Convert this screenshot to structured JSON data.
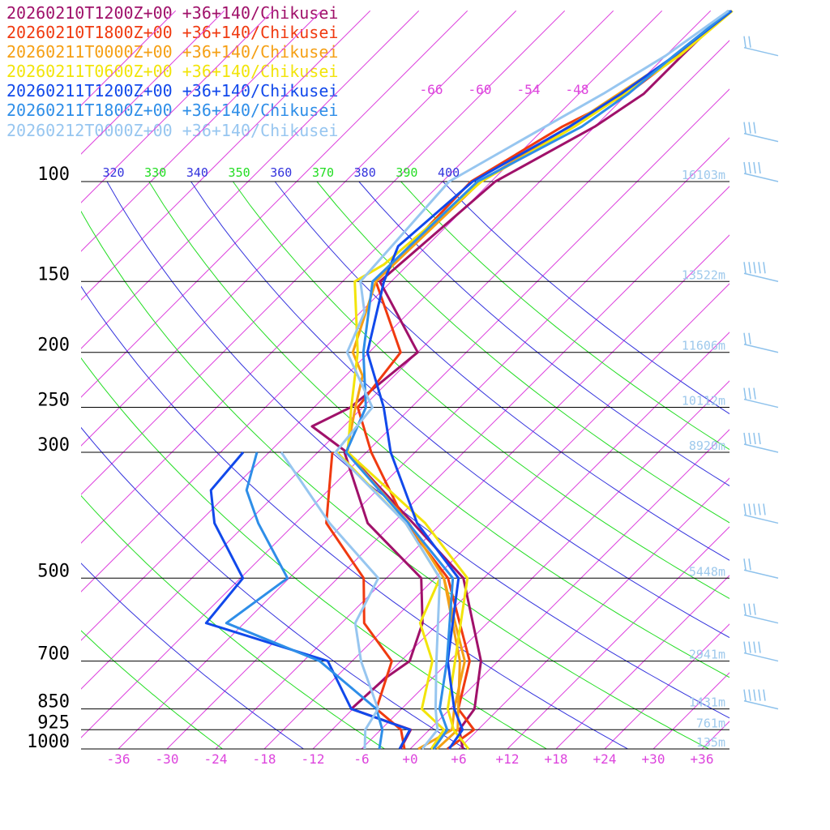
{
  "colors": {
    "isotherm": "#dd44dd",
    "theta": "#22dd22",
    "theta_e": "#3333dd",
    "isobar": "#000000",
    "height": "#9ec9ec",
    "wind": "#8ec2ec"
  },
  "chart_data": {
    "type": "line",
    "title": "",
    "xlabel": "",
    "ylabel": "",
    "x_axis": {
      "ticks": [
        -36,
        -30,
        -24,
        -18,
        -12,
        -6,
        0,
        6,
        12,
        18,
        24,
        30,
        36
      ],
      "labels": [
        "-36",
        "-30",
        "-24",
        "-18",
        "-12",
        "-6",
        "+0",
        "+6",
        "+12",
        "+18",
        "+24",
        "+30",
        "+36"
      ],
      "range": [
        -40,
        40
      ]
    },
    "y_axis": {
      "scale": "log",
      "range": [
        1000,
        100
      ],
      "ticks": [
        100,
        150,
        200,
        250,
        300,
        500,
        700,
        850,
        925,
        1000
      ],
      "labels": [
        "100",
        "150",
        "200",
        "250",
        "300",
        "500",
        "700",
        "850",
        "925",
        "1000"
      ]
    },
    "isotherm_labels": [
      -66,
      -60,
      -54,
      -48
    ],
    "isotherm_label_text": [
      "-66",
      "-60",
      "-54",
      "-48"
    ],
    "theta_labels": [
      "320",
      "330",
      "340",
      "350",
      "360",
      "370",
      "380",
      "390",
      "400"
    ],
    "theta_values": [
      320,
      330,
      340,
      350,
      360,
      370,
      380,
      390,
      400
    ],
    "theta_colors": [
      "theta_e",
      "theta",
      "theta_e",
      "theta",
      "theta_e",
      "theta",
      "theta_e",
      "theta",
      "theta_e"
    ],
    "height_labels": [
      {
        "p": 100,
        "text": "16103m"
      },
      {
        "p": 150,
        "text": "13522m"
      },
      {
        "p": 200,
        "text": "11606m"
      },
      {
        "p": 250,
        "text": "10112m"
      },
      {
        "p": 300,
        "text": "8920m"
      },
      {
        "p": 500,
        "text": "5448m"
      },
      {
        "p": 700,
        "text": "2941m"
      },
      {
        "p": 850,
        "text": "1431m"
      },
      {
        "p": 925,
        "text": "761m"
      },
      {
        "p": 1000,
        "text": "135m"
      }
    ],
    "wind_levels": [
      60,
      85,
      100,
      150,
      200,
      250,
      300,
      400,
      500,
      600,
      700,
      850
    ],
    "series": [
      {
        "name": "20260210T1200Z+00 +36+140/Chikusei",
        "color": "#a0116a",
        "temperature": [
          [
            1000,
            6.5
          ],
          [
            925,
            3.7
          ],
          [
            850,
            3.0
          ],
          [
            700,
            -2.1
          ],
          [
            500,
            -14.5
          ],
          [
            400,
            -27.5
          ],
          [
            300,
            -44.4
          ],
          [
            270,
            -51.9
          ],
          [
            250,
            -49.5
          ],
          [
            200,
            -48.0
          ],
          [
            150,
            -61.4
          ],
          [
            100,
            -59.5
          ],
          [
            80,
            -54.0
          ],
          [
            70,
            -52.0
          ],
          [
            60,
            -52.0
          ],
          [
            50,
            -51.8
          ]
        ],
        "dewpoint": [
          [
            1000,
            -1.2
          ],
          [
            925,
            -2.3
          ],
          [
            850,
            -12.2
          ],
          [
            750,
            -11.8
          ],
          [
            700,
            -10.9
          ],
          [
            600,
            -14.0
          ],
          [
            500,
            -19.7
          ],
          [
            400,
            -33.1
          ],
          [
            300,
            -44.7
          ]
        ]
      },
      {
        "name": "20260210T1800Z+00 +36+140/Chikusei",
        "color": "#f03a10",
        "temperature": [
          [
            1000,
            4.6
          ],
          [
            925,
            5.5
          ],
          [
            850,
            1.0
          ],
          [
            700,
            -3.5
          ],
          [
            500,
            -16.4
          ],
          [
            400,
            -28.4
          ],
          [
            300,
            -41.4
          ],
          [
            250,
            -48.6
          ],
          [
            200,
            -50.1
          ],
          [
            150,
            -61.9
          ],
          [
            140,
            -62.0
          ],
          [
            100,
            -62.5
          ],
          [
            80,
            -58.0
          ],
          [
            70,
            -54.0
          ],
          [
            60,
            -52.5
          ],
          [
            50,
            -51.8
          ]
        ],
        "dewpoint": [
          [
            1000,
            -0.7
          ],
          [
            925,
            -3.5
          ],
          [
            850,
            -9.1
          ],
          [
            700,
            -13.1
          ],
          [
            600,
            -21.2
          ],
          [
            500,
            -26.8
          ],
          [
            400,
            -38.2
          ],
          [
            300,
            -46.2
          ]
        ]
      },
      {
        "name": "20260211T0000Z+00 +36+140/Chikusei",
        "color": "#f5a015",
        "temperature": [
          [
            1000,
            3.3
          ],
          [
            925,
            3.5
          ],
          [
            850,
            1.0
          ],
          [
            700,
            -4.7
          ],
          [
            500,
            -16.9
          ],
          [
            400,
            -28.0
          ],
          [
            300,
            -44.4
          ],
          [
            250,
            -48.9
          ],
          [
            220,
            -51.9
          ],
          [
            200,
            -56.0
          ],
          [
            150,
            -61.9
          ],
          [
            100,
            -61.3
          ],
          [
            80,
            -57.2
          ],
          [
            70,
            -55.1
          ],
          [
            60,
            -52.7
          ],
          [
            50,
            -51.8
          ]
        ],
        "dewpoint": [
          [
            1000,
            1.0
          ],
          [
            925,
            2.8
          ],
          [
            850,
            0.5
          ],
          [
            700,
            -4.1
          ],
          [
            500,
            -16.9
          ]
        ]
      },
      {
        "name": "20260211T0600Z+00 +36+140/Chikusei",
        "color": "#f2e40a",
        "temperature": [
          [
            1000,
            7.2
          ],
          [
            925,
            3.0
          ],
          [
            850,
            -0.3
          ],
          [
            700,
            -5.3
          ],
          [
            500,
            -14.0
          ],
          [
            400,
            -26.0
          ],
          [
            300,
            -44.3
          ],
          [
            250,
            -49.4
          ],
          [
            200,
            -55.4
          ],
          [
            150,
            -64.5
          ],
          [
            140,
            -63.0
          ],
          [
            100,
            -61.2
          ],
          [
            80,
            -56.5
          ],
          [
            70,
            -54.4
          ],
          [
            60,
            -52.3
          ],
          [
            50,
            -51.3
          ]
        ],
        "dewpoint": [
          [
            1000,
            2.6
          ],
          [
            925,
            1.8
          ],
          [
            850,
            -3.5
          ],
          [
            700,
            -8.1
          ],
          [
            600,
            -14.3
          ],
          [
            500,
            -17.4
          ],
          [
            400,
            -28.4
          ],
          [
            300,
            -45.6
          ]
        ]
      },
      {
        "name": "20260211T1200Z+00 +36+140/Chikusei",
        "color": "#1149eb",
        "temperature": [
          [
            1000,
            4.8
          ],
          [
            925,
            4.1
          ],
          [
            850,
            0.5
          ],
          [
            700,
            -6.2
          ],
          [
            500,
            -15.1
          ],
          [
            400,
            -27.0
          ],
          [
            300,
            -39.0
          ],
          [
            250,
            -45.4
          ],
          [
            200,
            -54.2
          ],
          [
            150,
            -60.9
          ],
          [
            130,
            -63.5
          ],
          [
            100,
            -62.3
          ],
          [
            80,
            -57.1
          ],
          [
            70,
            -54.8
          ],
          [
            60,
            -52.9
          ],
          [
            50,
            -51.4
          ]
        ],
        "dewpoint": [
          [
            1000,
            -1.3
          ],
          [
            925,
            -2.4
          ],
          [
            850,
            -12.2
          ],
          [
            700,
            -21.0
          ],
          [
            600,
            -40.7
          ],
          [
            500,
            -41.7
          ],
          [
            400,
            -52.0
          ],
          [
            350,
            -56.5
          ],
          [
            300,
            -57.2
          ]
        ]
      },
      {
        "name": "20260211T1800Z+00 +36+140/Chikusei",
        "color": "#2e8ee8",
        "temperature": [
          [
            1000,
            2.9
          ],
          [
            925,
            2.2
          ],
          [
            850,
            -1.3
          ],
          [
            700,
            -6.3
          ],
          [
            500,
            -15.8
          ],
          [
            400,
            -28.1
          ],
          [
            300,
            -44.5
          ],
          [
            250,
            -47.6
          ],
          [
            200,
            -54.7
          ],
          [
            170,
            -59.0
          ],
          [
            150,
            -62.3
          ],
          [
            100,
            -61.7
          ],
          [
            80,
            -55.6
          ],
          [
            70,
            -53.9
          ],
          [
            60,
            -53.0
          ],
          [
            50,
            -51.6
          ]
        ],
        "dewpoint": [
          [
            1000,
            -3.8
          ],
          [
            925,
            -5.8
          ],
          [
            850,
            -9.1
          ],
          [
            700,
            -22.0
          ],
          [
            600,
            -38.2
          ],
          [
            500,
            -36.2
          ],
          [
            400,
            -46.6
          ],
          [
            350,
            -52.1
          ],
          [
            300,
            -55.5
          ]
        ]
      },
      {
        "name": "20260212T0000Z+00 +36+140/Chikusei",
        "color": "#97c6f0",
        "temperature": [
          [
            1000,
            1.5
          ],
          [
            925,
            1.0
          ],
          [
            850,
            -1.8
          ],
          [
            700,
            -7.6
          ],
          [
            500,
            -17.4
          ],
          [
            400,
            -28.4
          ],
          [
            300,
            -45.8
          ],
          [
            250,
            -46.8
          ],
          [
            200,
            -56.7
          ],
          [
            170,
            -59.5
          ],
          [
            150,
            -63.8
          ],
          [
            100,
            -65.2
          ],
          [
            80,
            -60.1
          ],
          [
            70,
            -57.0
          ],
          [
            60,
            -54.0
          ],
          [
            50,
            -51.8
          ]
        ],
        "dewpoint": [
          [
            1000,
            -5.6
          ],
          [
            925,
            -7.9
          ],
          [
            850,
            -8.9
          ],
          [
            700,
            -16.9
          ],
          [
            600,
            -22.3
          ],
          [
            500,
            -25.0
          ],
          [
            400,
            -37.8
          ],
          [
            300,
            -52.5
          ]
        ]
      }
    ]
  }
}
